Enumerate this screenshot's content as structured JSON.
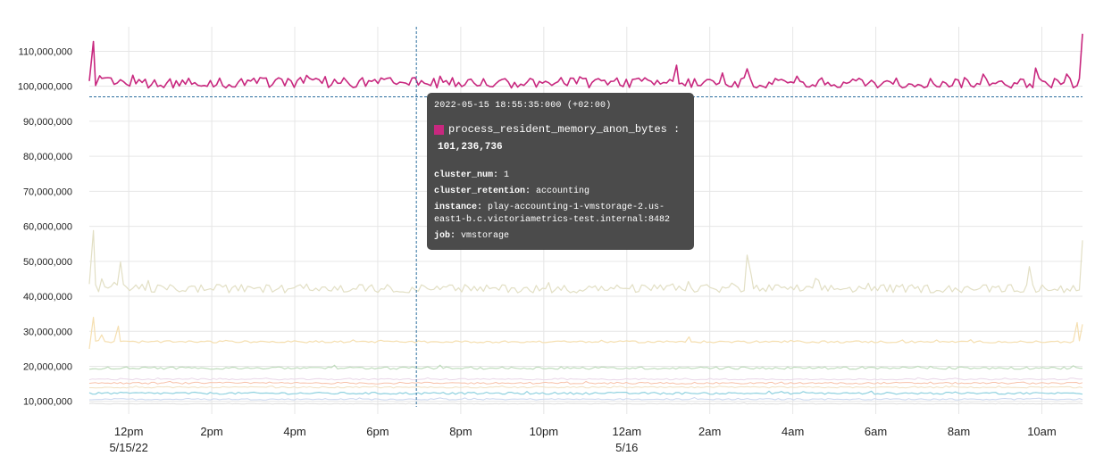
{
  "chart_data": {
    "type": "line",
    "x_ticks": [
      {
        "label": "12pm",
        "sub": "5/15/22",
        "t": 12
      },
      {
        "label": "2pm",
        "sub": "",
        "t": 14
      },
      {
        "label": "4pm",
        "sub": "",
        "t": 16
      },
      {
        "label": "6pm",
        "sub": "",
        "t": 18
      },
      {
        "label": "8pm",
        "sub": "",
        "t": 20
      },
      {
        "label": "10pm",
        "sub": "",
        "t": 22
      },
      {
        "label": "12am",
        "sub": "5/16",
        "t": 24
      },
      {
        "label": "2am",
        "sub": "",
        "t": 26
      },
      {
        "label": "4am",
        "sub": "",
        "t": 28
      },
      {
        "label": "6am",
        "sub": "",
        "t": 30
      },
      {
        "label": "8am",
        "sub": "",
        "t": 32
      },
      {
        "label": "10am",
        "sub": "",
        "t": 34
      }
    ],
    "x_range_hours": [
      11.05,
      34.98
    ],
    "y_ticks": [
      "110,000,000",
      "100,000,000",
      "90,000,000",
      "80,000,000",
      "70,000,000",
      "60,000,000",
      "50,000,000",
      "40,000,000",
      "30,000,000",
      "20,000,000",
      "10,000,000"
    ],
    "ylim": [
      8400000,
      117000000
    ],
    "grid": true,
    "cursor_time": 18.93,
    "cursor_value": 97000000,
    "series": [
      {
        "color": "#c8287f",
        "base": 101000000,
        "noise": 1500000,
        "spikes": [
          [
            11.05,
            101500000
          ],
          [
            11.15,
            112800000
          ],
          [
            11.3,
            103000000
          ],
          [
            25.2,
            106000000
          ],
          [
            26.9,
            105000000
          ],
          [
            33.85,
            105200000
          ],
          [
            34.6,
            103500000
          ],
          [
            34.85,
            100200000
          ],
          [
            34.98,
            115000000
          ]
        ],
        "width": 1.6
      },
      {
        "color": "#e2dfc4",
        "base": 42200000,
        "noise": 1200000,
        "spikes": [
          [
            11.05,
            43500000
          ],
          [
            11.15,
            58800000
          ],
          [
            11.35,
            45000000
          ],
          [
            11.65,
            44000000
          ],
          [
            11.8,
            49800000
          ],
          [
            26.9,
            51800000
          ],
          [
            27.0,
            46000000
          ],
          [
            33.7,
            48500000
          ],
          [
            34.98,
            56000000
          ]
        ],
        "width": 1.2
      },
      {
        "color": "#f5dfb0",
        "base": 27000000,
        "noise": 300000,
        "spikes": [
          [
            11.05,
            25000000
          ],
          [
            11.15,
            34000000
          ],
          [
            11.35,
            29000000
          ],
          [
            11.75,
            31500000
          ],
          [
            25.5,
            28400000
          ],
          [
            34.85,
            32500000
          ],
          [
            34.98,
            32000000
          ]
        ],
        "width": 1.2
      },
      {
        "color": "#bfdcbc",
        "base": 19500000,
        "noise": 350000,
        "spikes": [],
        "width": 1.2
      },
      {
        "color": "#e9d6e8",
        "base": 16300000,
        "noise": 200000,
        "spikes": [],
        "width": 1.0
      },
      {
        "color": "#f7c1a9",
        "base": 15200000,
        "noise": 250000,
        "spikes": [],
        "width": 1.0
      },
      {
        "color": "#f1e0c0",
        "base": 14000000,
        "noise": 200000,
        "spikes": [],
        "width": 1.0
      },
      {
        "color": "#8fd1df",
        "base": 12300000,
        "noise": 300000,
        "spikes": [],
        "width": 1.2
      },
      {
        "color": "#c9d6ee",
        "base": 10600000,
        "noise": 200000,
        "spikes": [],
        "width": 1.0
      },
      {
        "color": "#dcdcdc",
        "base": 9300000,
        "noise": 100000,
        "spikes": [],
        "width": 1.0
      }
    ]
  },
  "tooltip": {
    "time": "2022-05-15 18:55:35:000 (+02:00)",
    "metric": "process_resident_memory_anon_bytes :",
    "metric_color": "#c8287f",
    "value": "101,236,736",
    "labels": [
      {
        "key": "cluster_num:",
        "value": " 1"
      },
      {
        "key": "cluster_retention:",
        "value": " accounting"
      },
      {
        "key": "instance:",
        "value": " play-accounting-1-vmstorage-2.us-east1-b.c.victoriametrics-test.internal:8482"
      },
      {
        "key": "job:",
        "value": " vmstorage"
      }
    ]
  }
}
